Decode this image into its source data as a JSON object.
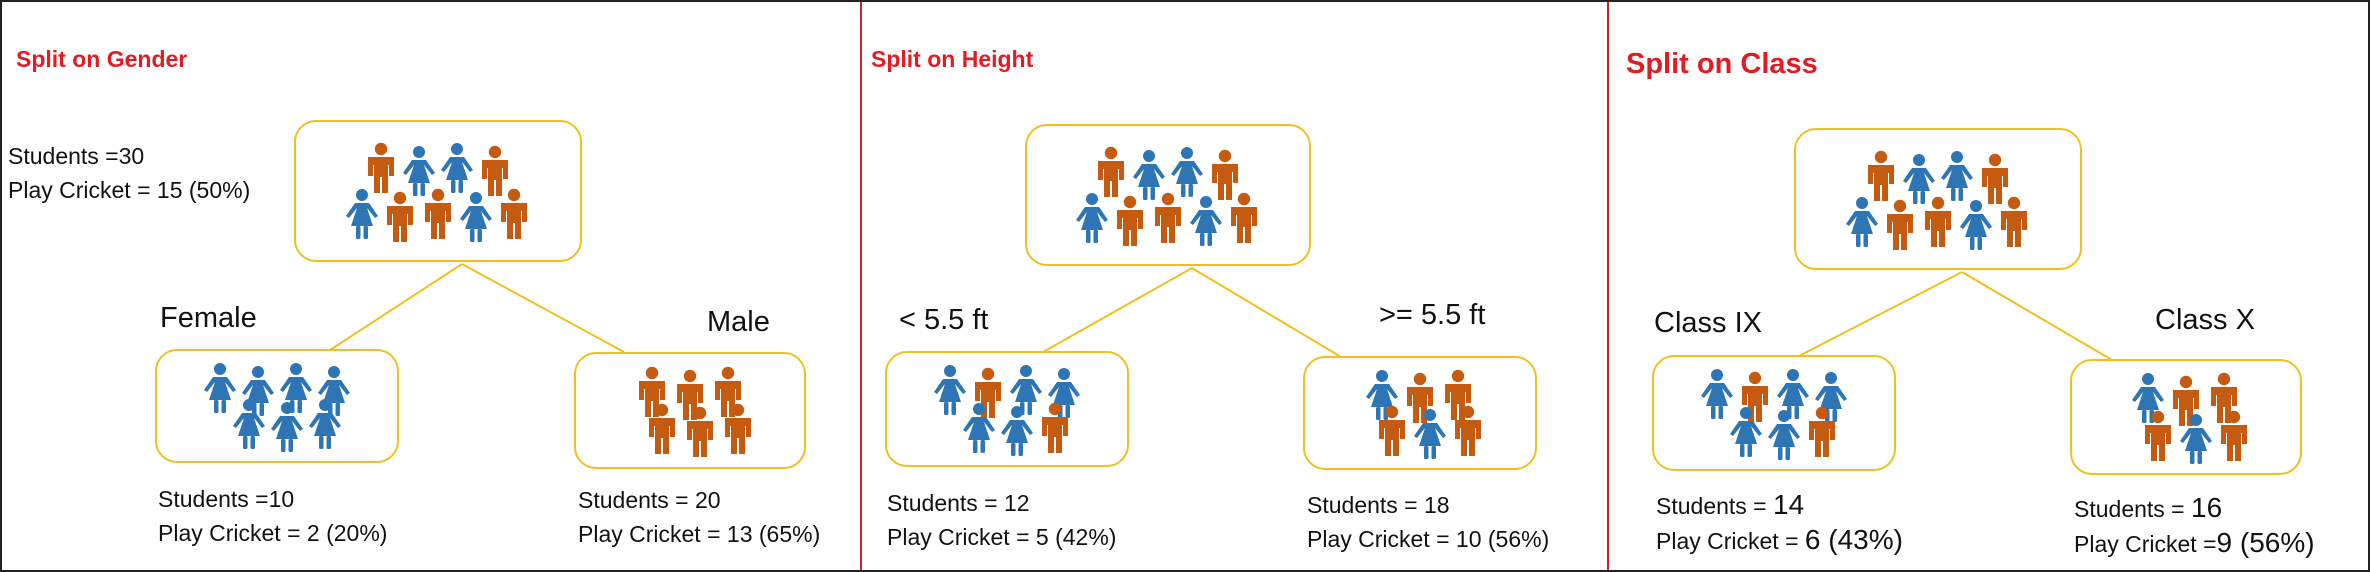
{
  "colors": {
    "female": "#2e75b6",
    "male": "#c55a11",
    "box_border": "#f0c020",
    "line": "#f0c020",
    "title": "#e01c24",
    "divider": "#d0202a"
  },
  "icons": {
    "female": "female-student-icon",
    "male": "male-student-icon"
  },
  "panels": [
    {
      "title": "Split on Gender",
      "root": {
        "students": "Students =30",
        "play": "Play Cricket = 15 (50%)",
        "rows": [
          "MFFM",
          "FMMFM"
        ]
      },
      "left": {
        "label": "Female",
        "students": "Students =10",
        "play": "Play Cricket = 2 (20%)",
        "rows": [
          "FFFF",
          "FFF"
        ]
      },
      "right": {
        "label": "Male",
        "students": "Students = 20",
        "play": "Play Cricket = 13 (65%)",
        "rows": [
          "MMM",
          "MMM"
        ]
      }
    },
    {
      "title": "Split on Height",
      "root": {
        "rows": [
          "MFFM",
          "FMMFM"
        ]
      },
      "left": {
        "label": "< 5.5 ft",
        "students_prefix": "Students = ",
        "students_val": "12",
        "play_prefix": "Play Cricket = ",
        "play_val": "5 (42%)",
        "rows": [
          "FMFF",
          "FFM"
        ]
      },
      "right": {
        "label": ">= 5.5 ft",
        "students_prefix": "Students = ",
        "students_val": "18",
        "play_prefix": "Play Cricket = ",
        "play_val": "10 (56%)",
        "rows": [
          "FMM",
          "MFM"
        ]
      }
    },
    {
      "title": "Split on Class",
      "root": {
        "rows": [
          "MFFM",
          "FMMFM"
        ]
      },
      "left": {
        "label": "Class IX",
        "students_prefix": "Students = ",
        "students_val": "14",
        "play_prefix": "Play Cricket = ",
        "play_val": "6 (43%)",
        "rows": [
          "FMFF",
          "FFM"
        ]
      },
      "right": {
        "label": "Class X",
        "students_prefix": "Students = ",
        "students_val": "16",
        "play_prefix": "Play Cricket =",
        "play_val": "9 (56%)",
        "rows": [
          "FMM",
          "MFM"
        ]
      }
    }
  ]
}
